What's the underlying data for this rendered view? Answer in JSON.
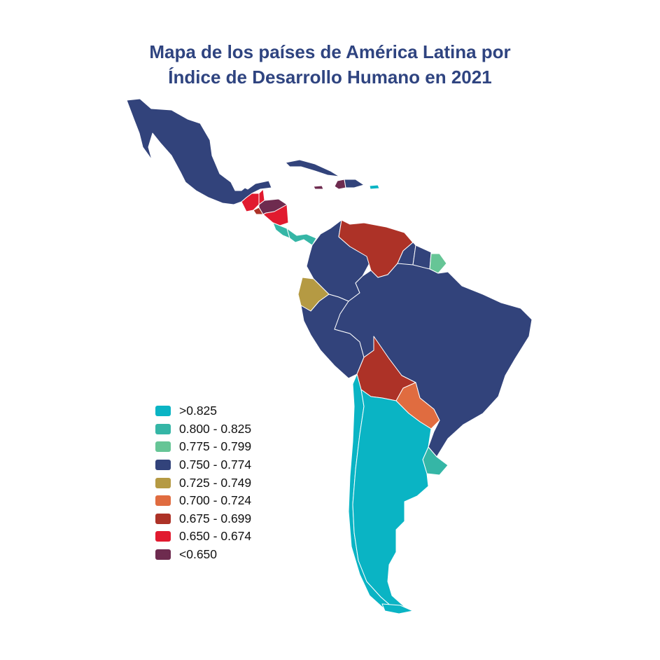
{
  "title": {
    "line1": "Mapa de los países de América Latina por",
    "line2": "Índice de Desarrollo Humano en 2021"
  },
  "legend": [
    {
      "label": ">0.825",
      "color": "#0ab4c4"
    },
    {
      "label": "0.800 - 0.825",
      "color": "#35b6a6"
    },
    {
      "label": "0.775 - 0.799",
      "color": "#66c596"
    },
    {
      "label": "0.750 - 0.774",
      "color": "#32437b"
    },
    {
      "label": "0.725 - 0.749",
      "color": "#b59a43"
    },
    {
      "label": "0.700 - 0.724",
      "color": "#e06c40"
    },
    {
      "label": "0.675 - 0.699",
      "color": "#ad3227"
    },
    {
      "label": "0.650 - 0.674",
      "color": "#e11a2f"
    },
    {
      "label": "<0.650",
      "color": "#6e2b4f"
    }
  ],
  "regions": [
    {
      "id": "mexico",
      "class": 3
    },
    {
      "id": "guatemala",
      "class": 7
    },
    {
      "id": "belize",
      "class": 7
    },
    {
      "id": "el-salvador",
      "class": 6
    },
    {
      "id": "honduras",
      "class": 8
    },
    {
      "id": "nicaragua",
      "class": 7
    },
    {
      "id": "costa-rica",
      "class": 1
    },
    {
      "id": "panama",
      "class": 1
    },
    {
      "id": "cuba",
      "class": 3
    },
    {
      "id": "haiti",
      "class": 8
    },
    {
      "id": "dominican-republic",
      "class": 3
    },
    {
      "id": "puerto-rico",
      "class": 0
    },
    {
      "id": "colombia",
      "class": 3
    },
    {
      "id": "venezuela",
      "class": 6
    },
    {
      "id": "guyana",
      "class": 3
    },
    {
      "id": "suriname",
      "class": 3
    },
    {
      "id": "french-guiana",
      "class": 2
    },
    {
      "id": "ecuador",
      "class": 4
    },
    {
      "id": "peru",
      "class": 3
    },
    {
      "id": "brazil",
      "class": 3
    },
    {
      "id": "bolivia",
      "class": 6
    },
    {
      "id": "paraguay",
      "class": 5
    },
    {
      "id": "uruguay",
      "class": 1
    },
    {
      "id": "chile",
      "class": 0
    },
    {
      "id": "argentina",
      "class": 0
    }
  ]
}
